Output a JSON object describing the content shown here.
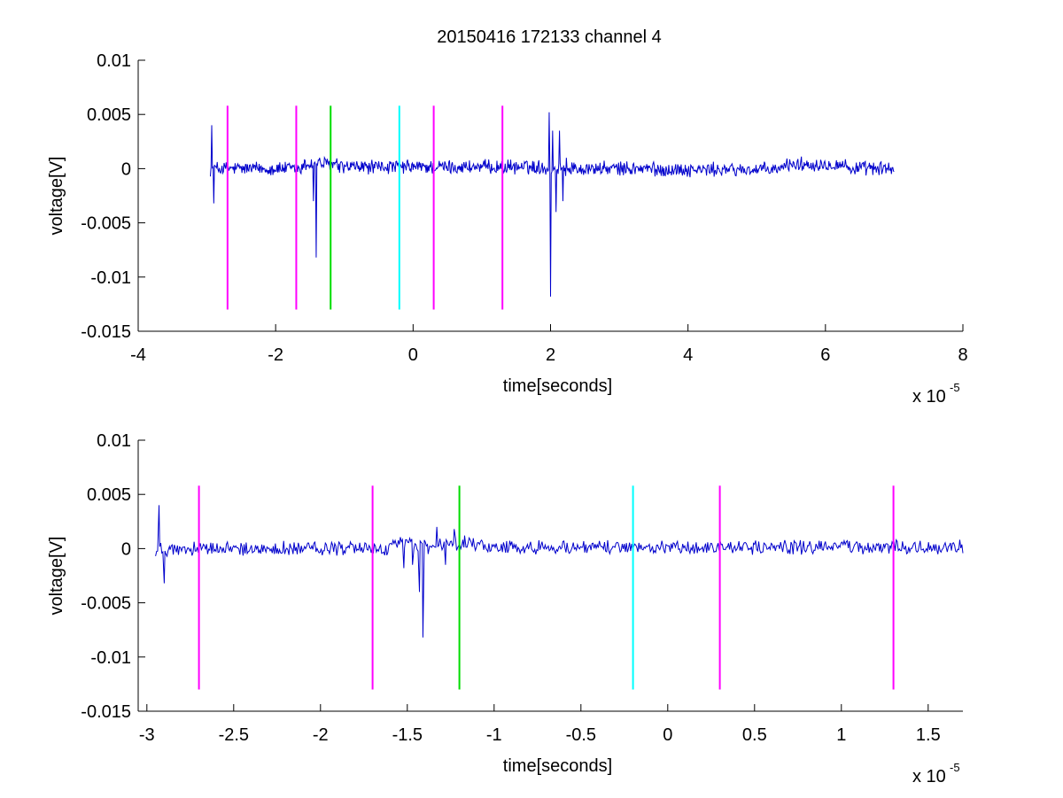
{
  "figure_title": "20150416 172133 channel 4",
  "colors": {
    "signal": "#0000cc",
    "magenta": "#ff00ff",
    "green": "#00dd00",
    "cyan": "#00ffff",
    "axis": "#000000"
  },
  "chart_data": [
    {
      "type": "line",
      "title": "20150416 172133 channel 4",
      "xlabel": "time[seconds]",
      "ylabel": "voltage[V]",
      "x_exponent_label": "x 10",
      "x_exponent": "-5",
      "xlim": [
        -4,
        8
      ],
      "ylim": [
        -0.015,
        0.01
      ],
      "xticks": [
        -4,
        -2,
        0,
        2,
        4,
        6,
        8
      ],
      "xtick_labels": [
        "-4",
        "-2",
        "0",
        "2",
        "4",
        "6",
        "8"
      ],
      "yticks": [
        0.01,
        0.005,
        0,
        -0.005,
        -0.01,
        -0.015
      ],
      "ytick_labels": [
        "0.01",
        "0.005",
        "0",
        "-0.005",
        "-0.01",
        "-0.015"
      ],
      "grid": false,
      "series": [
        {
          "color": "#0000cc",
          "x_range": [
            -2.95,
            7.0
          ],
          "events": [
            {
              "x": -2.93,
              "y": 0.004
            },
            {
              "x": -2.9,
              "y": -0.0032
            },
            {
              "x": -2.87,
              "y": 0.0002
            },
            {
              "x": -1.45,
              "y": -0.003
            },
            {
              "x": -1.41,
              "y": -0.0082
            },
            {
              "x": -1.36,
              "y": 0.001
            },
            {
              "x": 1.98,
              "y": 0.0052
            },
            {
              "x": 2.0,
              "y": -0.0118
            },
            {
              "x": 2.03,
              "y": 0.0035
            },
            {
              "x": 2.08,
              "y": -0.004
            },
            {
              "x": 2.13,
              "y": 0.0035
            },
            {
              "x": 2.18,
              "y": -0.003
            },
            {
              "x": 2.23,
              "y": 0.001
            }
          ]
        }
      ],
      "markers": [
        {
          "x": -2.7,
          "color": "#ff00ff",
          "y_range": [
            -0.013,
            0.0058
          ]
        },
        {
          "x": -1.7,
          "color": "#ff00ff",
          "y_range": [
            -0.013,
            0.0058
          ]
        },
        {
          "x": -1.2,
          "color": "#00dd00",
          "y_range": [
            -0.013,
            0.0058
          ]
        },
        {
          "x": -0.2,
          "color": "#00ffff",
          "y_range": [
            -0.013,
            0.0058
          ]
        },
        {
          "x": 0.3,
          "color": "#ff00ff",
          "y_range": [
            -0.013,
            0.0058
          ]
        },
        {
          "x": 1.3,
          "color": "#ff00ff",
          "y_range": [
            -0.013,
            0.0058
          ]
        }
      ]
    },
    {
      "type": "line",
      "title": "",
      "xlabel": "time[seconds]",
      "ylabel": "voltage[V]",
      "x_exponent_label": "x 10",
      "x_exponent": "-5",
      "xlim": [
        -3.05,
        1.7
      ],
      "ylim": [
        -0.015,
        0.01
      ],
      "xticks": [
        -3,
        -2.5,
        -2,
        -1.5,
        -1,
        -0.5,
        0,
        0.5,
        1,
        1.5
      ],
      "xtick_labels": [
        "-3",
        "-2.5",
        "-2",
        "-1.5",
        "-1",
        "-0.5",
        "0",
        "0.5",
        "1",
        "1.5"
      ],
      "yticks": [
        0.01,
        0.005,
        0,
        -0.005,
        -0.01,
        -0.015
      ],
      "ytick_labels": [
        "0.01",
        "0.005",
        "0",
        "-0.005",
        "-0.01",
        "-0.015"
      ],
      "grid": false,
      "series": [
        {
          "color": "#0000cc",
          "x_range": [
            -2.95,
            1.7
          ],
          "events": [
            {
              "x": -2.93,
              "y": 0.004
            },
            {
              "x": -2.9,
              "y": -0.0032
            },
            {
              "x": -2.87,
              "y": 0.0002
            },
            {
              "x": -1.52,
              "y": -0.0018
            },
            {
              "x": -1.47,
              "y": -0.0015
            },
            {
              "x": -1.43,
              "y": -0.004
            },
            {
              "x": -1.41,
              "y": -0.0082
            },
            {
              "x": -1.38,
              "y": -0.0005
            },
            {
              "x": -1.33,
              "y": 0.002
            },
            {
              "x": -1.28,
              "y": -0.0015
            },
            {
              "x": -1.23,
              "y": 0.0018
            },
            {
              "x": -1.17,
              "y": 0.0012
            }
          ]
        }
      ],
      "markers": [
        {
          "x": -2.7,
          "color": "#ff00ff",
          "y_range": [
            -0.013,
            0.0058
          ]
        },
        {
          "x": -1.7,
          "color": "#ff00ff",
          "y_range": [
            -0.013,
            0.0058
          ]
        },
        {
          "x": -1.2,
          "color": "#00dd00",
          "y_range": [
            -0.013,
            0.0058
          ]
        },
        {
          "x": -0.2,
          "color": "#00ffff",
          "y_range": [
            -0.013,
            0.0058
          ]
        },
        {
          "x": 0.3,
          "color": "#ff00ff",
          "y_range": [
            -0.013,
            0.0058
          ]
        },
        {
          "x": 1.3,
          "color": "#ff00ff",
          "y_range": [
            -0.013,
            0.0058
          ]
        }
      ]
    }
  ]
}
